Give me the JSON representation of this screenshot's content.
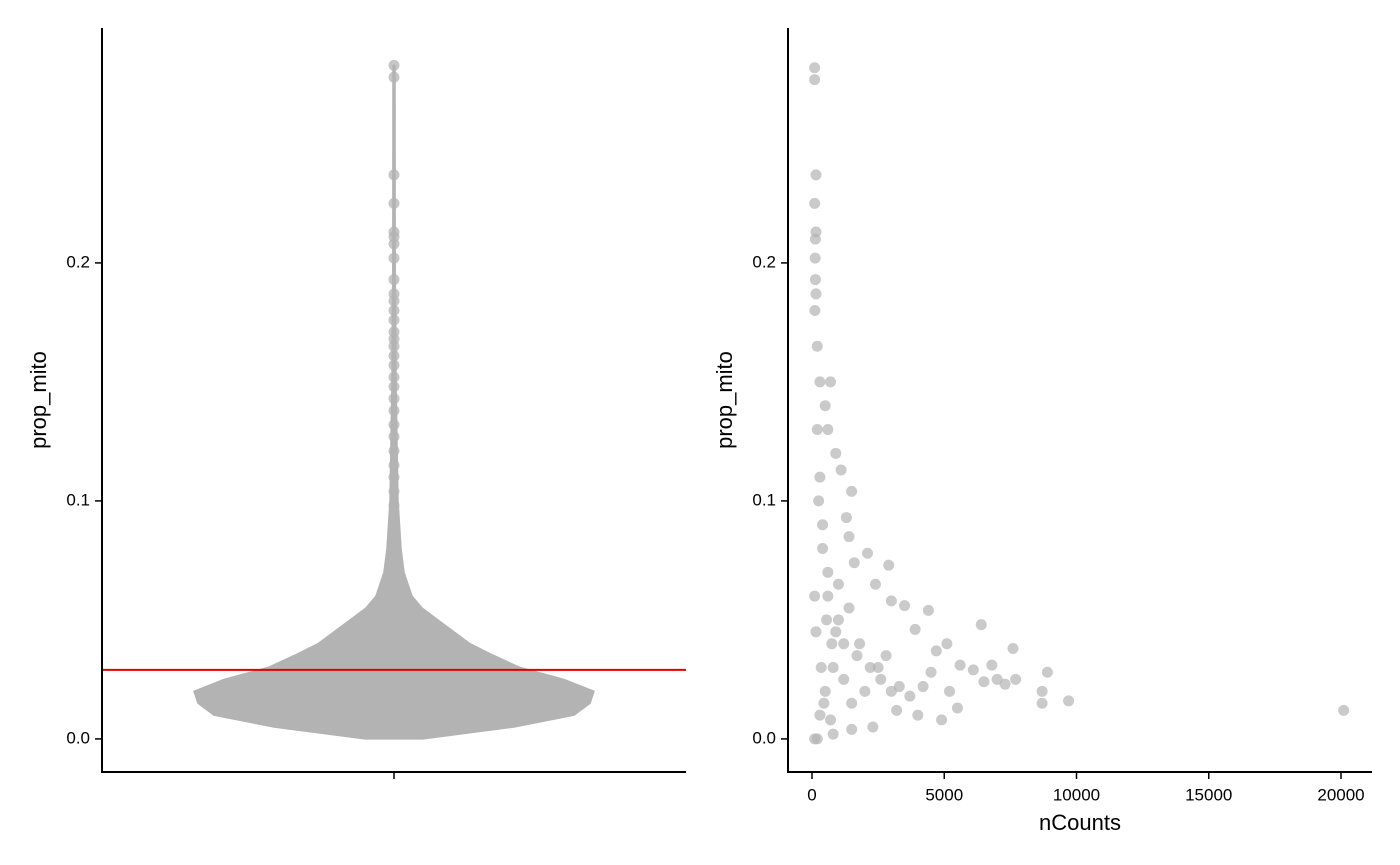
{
  "chart_data": [
    {
      "type": "violin",
      "ylabel": "prop_mito",
      "categories": [
        null
      ],
      "color": "#b3b3b3",
      "violin_y": [
        0,
        0.005,
        0.01,
        0.015,
        0.02,
        0.025,
        0.03,
        0.035,
        0.04,
        0.045,
        0.05,
        0.055,
        0.06,
        0.07,
        0.08,
        0.1,
        0.15,
        0.2,
        0.283
      ],
      "violin_width": [
        0.145,
        0.6,
        0.9,
        0.98,
        1.0,
        0.85,
        0.63,
        0.5,
        0.38,
        0.3,
        0.22,
        0.14,
        0.09,
        0.05,
        0.035,
        0.02,
        0.01,
        0.006,
        0.005
      ],
      "points": [
        0.283,
        0.278,
        0.237,
        0.225,
        0.213,
        0.211,
        0.208,
        0.202,
        0.193,
        0.187,
        0.184,
        0.18,
        0.176,
        0.171,
        0.168,
        0.165,
        0.161,
        0.157,
        0.152,
        0.148,
        0.143,
        0.138,
        0.132,
        0.127,
        0.121,
        0.115,
        0.11,
        0.104,
        0.098
      ],
      "hline": 0.029,
      "hline_color": "#e00000",
      "ylim": [
        -0.0139,
        0.2987
      ],
      "yticks": [
        {
          "value": 0,
          "label": "0.0"
        },
        0.1,
        0.2
      ]
    },
    {
      "type": "scatter",
      "xlabel": "nCounts",
      "ylabel": "prop_mito",
      "color": "#b3b3b3",
      "x": [
        100,
        100,
        150,
        100,
        150,
        130,
        120,
        130,
        150,
        110,
        200,
        300,
        700,
        500,
        600,
        900,
        1100,
        1500,
        1300,
        1400,
        1600,
        2100,
        2900,
        2400,
        3000,
        3500,
        4400,
        3900,
        4700,
        5100,
        6400,
        5600,
        6100,
        6800,
        7600,
        8900,
        7000,
        7700,
        7300,
        6500,
        8700,
        8700,
        9700,
        20100,
        5500,
        4900,
        4000,
        3200,
        2300,
        1500,
        800,
        200,
        100,
        300,
        500,
        800,
        1200,
        2000,
        2500,
        1000,
        600,
        400,
        300,
        200,
        1800,
        3000,
        4200,
        1500,
        700,
        2800,
        100,
        150,
        250,
        400,
        600,
        900,
        1200,
        1700,
        2200,
        2600,
        3300,
        3700,
        4500,
        5200,
        350,
        450,
        550,
        750,
        1000,
        1400
      ],
      "y": [
        0.282,
        0.277,
        0.237,
        0.225,
        0.213,
        0.21,
        0.202,
        0.193,
        0.187,
        0.18,
        0.165,
        0.15,
        0.15,
        0.14,
        0.13,
        0.12,
        0.113,
        0.104,
        0.093,
        0.085,
        0.074,
        0.078,
        0.073,
        0.065,
        0.058,
        0.056,
        0.054,
        0.046,
        0.037,
        0.04,
        0.048,
        0.031,
        0.029,
        0.031,
        0.038,
        0.028,
        0.025,
        0.025,
        0.023,
        0.024,
        0.02,
        0.015,
        0.016,
        0.012,
        0.013,
        0.008,
        0.01,
        0.012,
        0.005,
        0.004,
        0.002,
        0.0,
        0.0,
        0.01,
        0.02,
        0.03,
        0.025,
        0.02,
        0.03,
        0.05,
        0.07,
        0.09,
        0.11,
        0.13,
        0.04,
        0.02,
        0.022,
        0.015,
        0.008,
        0.035,
        0.06,
        0.045,
        0.1,
        0.08,
        0.06,
        0.045,
        0.04,
        0.035,
        0.03,
        0.025,
        0.022,
        0.018,
        0.028,
        0.02,
        0.03,
        0.015,
        0.05,
        0.04,
        0.065,
        0.055
      ],
      "xlim": [
        -907,
        21172
      ],
      "ylim": [
        -0.0139,
        0.2987
      ],
      "xticks": [
        0,
        5000,
        10000,
        15000,
        20000
      ],
      "yticks": [
        {
          "value": 0,
          "label": "0.0"
        },
        0.1,
        0.2
      ]
    }
  ]
}
